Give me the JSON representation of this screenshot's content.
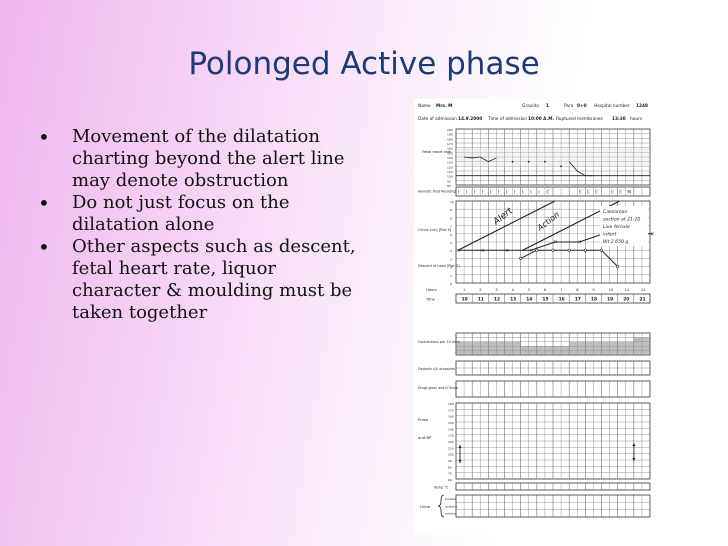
{
  "slide": {
    "title": "Polonged Active phase",
    "bullets": [
      "Movement of the dilatation charting beyond the alert line may denote obstruction",
      "Do not just focus on the dilatation alone",
      "Other aspects such as descent, fetal heart rate, liquor character & moulding must be taken together"
    ]
  },
  "partograph": {
    "name_label": "Name",
    "name_value": "Mrs. M",
    "gravida_label": "Gravida",
    "gravida_value": "1",
    "para_label": "Para",
    "para_value": "0+0",
    "hospital_label": "Hospital number",
    "hospital_value": "1248",
    "admission_label": "Date of admission",
    "admission_value": "14.9.2000",
    "time_label": "Time of admission",
    "time_value": "10:00 A.M.",
    "ruptured_label": "Ruptured membranes",
    "ruptured_value": "13:30",
    "ruptured_unit": "hours",
    "fhr_label": "Fetal heart rate",
    "fhr_ticks": [
      "200",
      "190",
      "180",
      "170",
      "160",
      "150",
      "140",
      "130",
      "120",
      "110",
      "100",
      "90",
      "80"
    ],
    "amniotic_label": "Amniotic fluid Moulding",
    "amniotic_marks": [
      "I",
      "I",
      "I",
      "I",
      "I",
      "I",
      "I",
      "I",
      "I",
      "I",
      "I",
      "C",
      "C",
      "C",
      "C",
      "C",
      "C",
      "M",
      "M",
      "M"
    ],
    "cervix_label": "Cervix (cm) [Plot X]",
    "descent_label": "Descent of head [Plot O]",
    "cervix_ticks": [
      "10",
      "9",
      "8",
      "7",
      "6",
      "5",
      "4",
      "3",
      "2",
      "1",
      "0"
    ],
    "alert_label": "Alert",
    "action_label": "Action",
    "outcome_lines": [
      "Caesarean",
      "section at 21:20",
      "Live female",
      "infant",
      "Wt 2 650 g"
    ],
    "hours_label": "Hours",
    "hours_values": [
      "1",
      "2",
      "3",
      "4",
      "5",
      "6",
      "7",
      "8",
      "9",
      "10",
      "11",
      "12"
    ],
    "time_row_label": "Time",
    "time_values": [
      "10",
      "11",
      "12",
      "13",
      "14",
      "15",
      "16",
      "17",
      "18",
      "19",
      "20",
      "21"
    ],
    "contractions_label": "Contractions per 10 mins",
    "oxytocin_label": "Oxytocin U/L drops/min",
    "drugs_label": "Drugs given and IV fluids",
    "pulse_label": "Pulse",
    "bp_label": "and BP",
    "pulse_ticks": [
      "180",
      "170",
      "160",
      "150",
      "140",
      "130",
      "120",
      "110",
      "100",
      "90",
      "80",
      "70",
      "60"
    ],
    "temp_label": "Temp °C",
    "urine_label": "Urine",
    "urine_items": [
      "protein",
      "acetone",
      "volume"
    ],
    "fhr_values": [
      140,
      138,
      140,
      130,
      138,
      122,
      130,
      130,
      130,
      130,
      130,
      130,
      120,
      130,
      110,
      100,
      100
    ],
    "dilatation_values": [
      4,
      4,
      4,
      4,
      5,
      5,
      6,
      6,
      6
    ],
    "descent_values": [
      3,
      4,
      4,
      4,
      4,
      4,
      2
    ]
  }
}
